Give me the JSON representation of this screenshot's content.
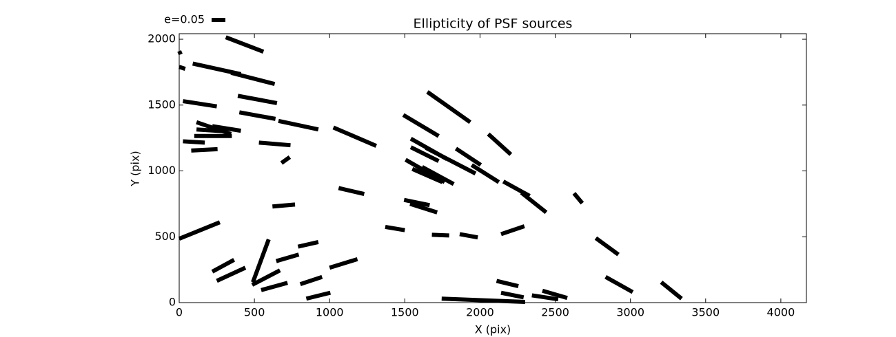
{
  "chart_data": {
    "type": "whisker",
    "title": "Ellipticity of PSF sources",
    "xlabel": "X (pix)",
    "ylabel": "Y (pix)",
    "legend_label": "e=0.05",
    "color": "#000000",
    "xlim": [
      0,
      4170
    ],
    "ylim": [
      0,
      2042
    ],
    "xticks": [
      0,
      500,
      1000,
      1500,
      2000,
      2500,
      3000,
      3500,
      4000
    ],
    "yticks": [
      0,
      500,
      1000,
      1500,
      2000
    ],
    "segments": [
      [
        310,
        2015,
        560,
        1905
      ],
      [
        0,
        1910,
        10,
        1885
      ],
      [
        0,
        1790,
        40,
        1775
      ],
      [
        90,
        1815,
        410,
        1735
      ],
      [
        345,
        1745,
        635,
        1660
      ],
      [
        390,
        1570,
        650,
        1515
      ],
      [
        25,
        1530,
        250,
        1490
      ],
      [
        400,
        1445,
        640,
        1395
      ],
      [
        660,
        1380,
        925,
        1315
      ],
      [
        1025,
        1330,
        1310,
        1190
      ],
      [
        115,
        1370,
        345,
        1280
      ],
      [
        220,
        1340,
        410,
        1305
      ],
      [
        115,
        1315,
        320,
        1300
      ],
      [
        100,
        1265,
        350,
        1265
      ],
      [
        25,
        1225,
        170,
        1215
      ],
      [
        80,
        1155,
        255,
        1165
      ],
      [
        530,
        1215,
        740,
        1195
      ],
      [
        680,
        1060,
        735,
        1105
      ],
      [
        620,
        730,
        770,
        745
      ],
      [
        1060,
        870,
        1230,
        825
      ],
      [
        0,
        485,
        270,
        610
      ],
      [
        490,
        155,
        595,
        480
      ],
      [
        220,
        235,
        365,
        325
      ],
      [
        250,
        165,
        440,
        265
      ],
      [
        485,
        135,
        670,
        245
      ],
      [
        545,
        95,
        720,
        150
      ],
      [
        645,
        315,
        795,
        365
      ],
      [
        790,
        425,
        925,
        460
      ],
      [
        805,
        140,
        950,
        195
      ],
      [
        845,
        30,
        1005,
        75
      ],
      [
        1000,
        265,
        1185,
        330
      ],
      [
        1370,
        575,
        1500,
        550
      ],
      [
        1495,
        780,
        1665,
        740
      ],
      [
        1535,
        750,
        1715,
        685
      ],
      [
        1680,
        515,
        1795,
        510
      ],
      [
        1865,
        520,
        1985,
        495
      ],
      [
        2140,
        520,
        2295,
        580
      ],
      [
        1745,
        30,
        2300,
        5
      ],
      [
        2110,
        165,
        2255,
        125
      ],
      [
        2140,
        75,
        2290,
        40
      ],
      [
        2345,
        55,
        2520,
        25
      ],
      [
        2415,
        90,
        2580,
        35
      ],
      [
        1490,
        1425,
        1725,
        1265
      ],
      [
        1650,
        1600,
        1935,
        1370
      ],
      [
        1540,
        1245,
        1780,
        1090
      ],
      [
        1540,
        1180,
        1725,
        1075
      ],
      [
        1505,
        1085,
        1765,
        915
      ],
      [
        1550,
        1015,
        1750,
        915
      ],
      [
        1615,
        1030,
        1825,
        900
      ],
      [
        1840,
        1170,
        2005,
        1045
      ],
      [
        1945,
        1045,
        2125,
        915
      ],
      [
        2055,
        1280,
        2205,
        1125
      ],
      [
        2155,
        920,
        2330,
        810
      ],
      [
        2275,
        835,
        2440,
        685
      ],
      [
        2625,
        830,
        2680,
        755
      ],
      [
        2770,
        490,
        2920,
        365
      ],
      [
        2835,
        195,
        3015,
        80
      ],
      [
        3205,
        155,
        3340,
        30
      ],
      [
        1640,
        1175,
        1970,
        980
      ]
    ]
  }
}
